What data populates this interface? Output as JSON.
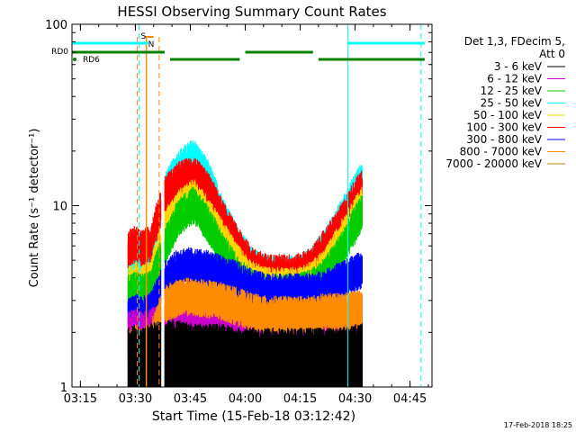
{
  "chart_data": {
    "type": "line",
    "title": "HESSI Observing Summary Count Rates",
    "xlabel": "Start Time (15-Feb-18 03:12:42)",
    "ylabel": "Count Rate (s⁻¹ detector⁻¹)",
    "yscale": "log",
    "ylim": [
      1,
      100
    ],
    "xlim": [
      "03:12:42",
      "04:51:00"
    ],
    "x_ticks": [
      "03:15",
      "03:30",
      "03:45",
      "04:00",
      "04:15",
      "04:30",
      "04:45"
    ],
    "y_ticks": [
      "1",
      "10",
      "100"
    ],
    "legend_header": [
      "Det 1,3, FDecim 5,",
      "Att 0"
    ],
    "legend_position": "right",
    "timestamp": "17-Feb-2018 18:25",
    "flags": {
      "rd0_label": "RD0",
      "rd6_label": "RD6",
      "s_label": "S",
      "n_label": "N",
      "rd0_segments": [
        [
          "03:12:42",
          "03:38:00"
        ],
        [
          "03:39:30",
          "03:58:30"
        ],
        [
          "04:00:00",
          "04:18:30"
        ],
        [
          "04:20:00",
          "04:49:00"
        ]
      ],
      "rd0_colors": [
        "#008000",
        "#008000",
        "#008000",
        "#008000"
      ],
      "cyan_segments": [
        [
          "03:12:42",
          "03:33:30"
        ],
        [
          "04:28:00",
          "04:49:00"
        ]
      ]
    },
    "markers": {
      "cyan_solid": [
        "03:12:42",
        "04:28:00"
      ],
      "cyan_dashed": [
        "03:31:00",
        "04:48:00"
      ],
      "orange_solid": [
        "03:33:00"
      ],
      "orange_dashed": [
        "03:30:30",
        "03:36:30"
      ]
    },
    "data_gaps": [
      [
        "03:12:42",
        "03:27:30"
      ],
      [
        "03:37:00",
        "03:38:00"
      ],
      [
        "04:32:00",
        "04:51:00"
      ]
    ],
    "series": [
      {
        "name": "3 - 6 keV",
        "color": "#000000",
        "x": [
          "03:28",
          "03:30",
          "03:32",
          "03:34",
          "03:38",
          "03:42",
          "03:46",
          "03:50",
          "03:54",
          "03:58",
          "04:02",
          "04:06",
          "04:10",
          "04:14",
          "04:18",
          "04:22",
          "04:26",
          "04:30",
          "04:32"
        ],
        "values": [
          1.8,
          1.9,
          1.8,
          1.9,
          2.0,
          2.0,
          1.9,
          1.9,
          1.9,
          1.8,
          1.8,
          1.8,
          1.8,
          1.8,
          1.8,
          1.8,
          1.8,
          1.9,
          1.9
        ]
      },
      {
        "name": "6 - 12 keV",
        "color": "#cc00cc",
        "x": [
          "03:28",
          "03:30",
          "03:32",
          "03:34",
          "03:38",
          "03:42",
          "03:46",
          "03:50",
          "03:54",
          "03:58",
          "04:02",
          "04:06",
          "04:10",
          "04:14",
          "04:18",
          "04:22",
          "04:26",
          "04:30",
          "04:32"
        ],
        "values": [
          2.2,
          2.3,
          2.2,
          2.3,
          2.6,
          2.8,
          2.7,
          2.6,
          2.5,
          2.4,
          2.4,
          2.3,
          2.3,
          2.3,
          2.3,
          2.3,
          2.4,
          2.5,
          2.6
        ]
      },
      {
        "name": "12 - 25 keV",
        "color": "#00cc00",
        "x": [
          "03:28",
          "03:30",
          "03:32",
          "03:34",
          "03:38",
          "03:42",
          "03:46",
          "03:50",
          "03:54",
          "03:58",
          "04:02",
          "04:06",
          "04:10",
          "04:14",
          "04:18",
          "04:22",
          "04:26",
          "04:30",
          "04:32"
        ],
        "values": [
          3.6,
          3.7,
          3.6,
          3.7,
          6.5,
          9.5,
          11.0,
          8.5,
          6.0,
          4.5,
          3.8,
          3.6,
          3.6,
          3.6,
          3.8,
          4.5,
          6.0,
          8.5,
          10.0
        ]
      },
      {
        "name": "25 - 50 keV",
        "color": "#00ffff",
        "x": [
          "03:28",
          "03:30",
          "03:32",
          "03:34",
          "03:38",
          "03:42",
          "03:46",
          "03:50",
          "03:54",
          "03:58",
          "04:02",
          "04:06",
          "04:10",
          "04:14",
          "04:18",
          "04:22",
          "04:26",
          "04:30",
          "04:32"
        ],
        "values": [
          5.5,
          5.8,
          5.6,
          5.8,
          13.0,
          17.5,
          20.0,
          15.0,
          9.5,
          6.5,
          5.0,
          4.5,
          4.5,
          4.5,
          5.0,
          6.5,
          9.0,
          13.0,
          15.0
        ]
      },
      {
        "name": "50 - 100 keV",
        "color": "#ffd700",
        "x": [
          "03:28",
          "03:30",
          "03:32",
          "03:34",
          "03:38",
          "03:42",
          "03:46",
          "03:50",
          "03:54",
          "03:58",
          "04:02",
          "04:06",
          "04:10",
          "04:14",
          "04:18",
          "04:22",
          "04:26",
          "04:30",
          "04:32"
        ],
        "values": [
          4.0,
          4.2,
          4.0,
          4.2,
          8.0,
          10.5,
          12.0,
          9.5,
          7.0,
          5.2,
          4.2,
          3.9,
          3.9,
          3.9,
          4.2,
          5.0,
          7.0,
          9.5,
          11.0
        ]
      },
      {
        "name": "100 - 300 keV",
        "color": "#ff0000",
        "x": [
          "03:28",
          "03:30",
          "03:32",
          "03:34",
          "03:38",
          "03:42",
          "03:46",
          "03:50",
          "03:54",
          "03:58",
          "04:02",
          "04:06",
          "04:10",
          "04:14",
          "04:18",
          "04:22",
          "04:26",
          "04:30",
          "04:32"
        ],
        "values": [
          6.2,
          6.6,
          6.3,
          6.6,
          12.5,
          15.0,
          16.0,
          13.0,
          9.0,
          6.5,
          5.0,
          4.6,
          4.6,
          4.6,
          5.0,
          6.5,
          8.5,
          12.0,
          13.5
        ]
      },
      {
        "name": "300 - 800 keV",
        "color": "#0000ff",
        "x": [
          "03:28",
          "03:30",
          "03:32",
          "03:34",
          "03:38",
          "03:42",
          "03:46",
          "03:50",
          "03:54",
          "03:58",
          "04:02",
          "04:06",
          "04:10",
          "04:14",
          "04:18",
          "04:22",
          "04:26",
          "04:30",
          "04:32"
        ],
        "values": [
          2.7,
          2.8,
          2.7,
          2.8,
          4.2,
          5.0,
          5.0,
          4.8,
          4.5,
          4.2,
          3.8,
          3.6,
          3.6,
          3.6,
          3.6,
          3.8,
          4.2,
          4.6,
          4.8
        ]
      },
      {
        "name": "800 - 7000 keV",
        "color": "#ff8c00",
        "x": [
          "03:28",
          "03:30",
          "03:32",
          "03:34",
          "03:38",
          "03:42",
          "03:46",
          "03:50",
          "03:54",
          "03:58",
          "04:02",
          "04:06",
          "04:10",
          "04:14",
          "04:18",
          "04:22",
          "04:26",
          "04:30",
          "04:32"
        ],
        "values": [
          1.8,
          1.9,
          1.8,
          1.9,
          3.1,
          3.4,
          3.4,
          3.3,
          3.2,
          3.0,
          2.8,
          2.7,
          2.7,
          2.7,
          2.7,
          2.8,
          2.8,
          2.9,
          2.9
        ]
      },
      {
        "name": "7000 - 20000 keV",
        "color": "#b8860b",
        "x": [],
        "values": []
      }
    ]
  }
}
